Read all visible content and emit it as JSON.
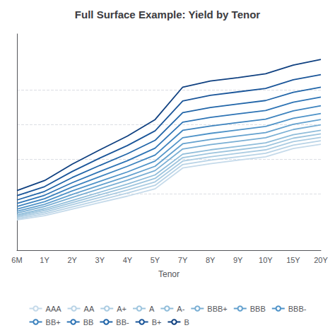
{
  "chart_data": {
    "type": "line",
    "title": "Full Surface Example: Yield by Tenor",
    "xlabel": "Tenor",
    "categories": [
      "6M",
      "1Y",
      "2Y",
      "3Y",
      "4Y",
      "5Y",
      "7Y",
      "8Y",
      "9Y",
      "10Y",
      "15Y",
      "20Y"
    ],
    "series": [
      {
        "name": "AAA",
        "color": "#c5daea",
        "values": [
          1.9,
          2.0,
          2.15,
          2.3,
          2.45,
          2.62,
          3.1,
          3.2,
          3.28,
          3.36,
          3.55,
          3.65
        ]
      },
      {
        "name": "AA",
        "color": "#b8d3e6",
        "values": [
          1.93,
          2.04,
          2.2,
          2.36,
          2.52,
          2.7,
          3.18,
          3.28,
          3.36,
          3.44,
          3.63,
          3.73
        ]
      },
      {
        "name": "A+",
        "color": "#abcce2",
        "values": [
          1.96,
          2.08,
          2.25,
          2.42,
          2.59,
          2.78,
          3.26,
          3.36,
          3.44,
          3.52,
          3.71,
          3.81
        ]
      },
      {
        "name": "A",
        "color": "#9ec5de",
        "values": [
          1.99,
          2.12,
          2.3,
          2.48,
          2.66,
          2.86,
          3.34,
          3.44,
          3.52,
          3.6,
          3.79,
          3.89
        ]
      },
      {
        "name": "A-",
        "color": "#90bdda",
        "values": [
          2.02,
          2.16,
          2.35,
          2.54,
          2.73,
          2.94,
          3.42,
          3.52,
          3.6,
          3.68,
          3.87,
          3.97
        ]
      },
      {
        "name": "BBB+",
        "color": "#7aafd4",
        "values": [
          2.06,
          2.21,
          2.42,
          2.62,
          2.82,
          3.04,
          3.54,
          3.64,
          3.72,
          3.8,
          3.99,
          4.1
        ]
      },
      {
        "name": "BBB",
        "color": "#64a1ce",
        "values": [
          2.1,
          2.26,
          2.49,
          2.7,
          2.91,
          3.14,
          3.66,
          3.76,
          3.84,
          3.92,
          4.11,
          4.22
        ]
      },
      {
        "name": "BBB-",
        "color": "#4f93c8",
        "values": [
          2.15,
          2.32,
          2.57,
          2.79,
          3.01,
          3.26,
          3.8,
          3.9,
          3.98,
          4.06,
          4.25,
          4.36
        ]
      },
      {
        "name": "BB+",
        "color": "#3d83be",
        "values": [
          2.21,
          2.39,
          2.66,
          2.9,
          3.14,
          3.4,
          3.97,
          4.07,
          4.15,
          4.23,
          4.42,
          4.54
        ]
      },
      {
        "name": "BB",
        "color": "#2e74b5",
        "values": [
          2.28,
          2.47,
          2.76,
          3.02,
          3.27,
          3.56,
          4.16,
          4.27,
          4.35,
          4.43,
          4.62,
          4.74
        ]
      },
      {
        "name": "BB-",
        "color": "#2165a8",
        "values": [
          2.36,
          2.56,
          2.88,
          3.16,
          3.43,
          3.74,
          4.38,
          4.5,
          4.58,
          4.66,
          4.85,
          4.97
        ]
      },
      {
        "name": "B+",
        "color": "#1a5599",
        "values": [
          2.46,
          2.67,
          3.02,
          3.33,
          3.62,
          3.96,
          4.65,
          4.78,
          4.86,
          4.94,
          5.14,
          5.26
        ]
      },
      {
        "name": "B",
        "color": "#0f4080",
        "values": [
          2.58,
          2.81,
          3.19,
          3.52,
          3.84,
          4.22,
          4.97,
          5.11,
          5.19,
          5.28,
          5.48,
          5.61
        ]
      }
    ],
    "ylim": [
      1.2,
      6.2
    ],
    "yticks": [
      2.5,
      3.3,
      4.1,
      4.9
    ],
    "grid": true,
    "legend": "bottom",
    "tick_labels": "x"
  }
}
